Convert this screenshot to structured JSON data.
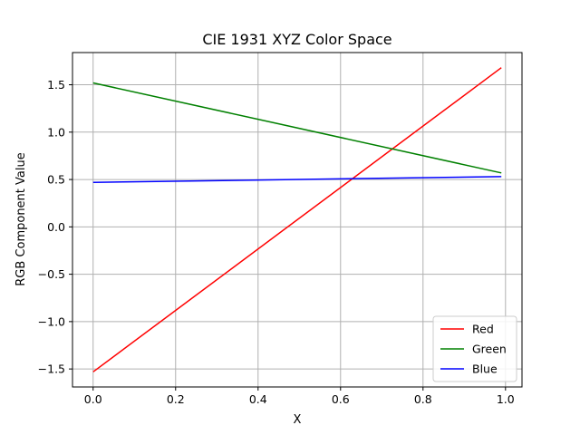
{
  "chart_data": {
    "type": "line",
    "title": "CIE 1931 XYZ Color Space",
    "xlabel": "X",
    "ylabel": "RGB Component Value",
    "xlim": [
      -0.05,
      1.04
    ],
    "ylim": [
      -1.69,
      1.84
    ],
    "xticks": [
      0.0,
      0.2,
      0.4,
      0.6,
      0.8,
      1.0
    ],
    "xtick_labels": [
      "0.0",
      "0.2",
      "0.4",
      "0.6",
      "0.8",
      "1.0"
    ],
    "yticks": [
      -1.5,
      -1.0,
      -0.5,
      0.0,
      0.5,
      1.0,
      1.5
    ],
    "ytick_labels": [
      "−1.5",
      "−1.0",
      "−0.5",
      "0.0",
      "0.5",
      "1.0",
      "1.5"
    ],
    "grid": true,
    "legend_position": "lower-right",
    "series": [
      {
        "name": "Red",
        "color": "#ff0000",
        "x": [
          0.0,
          0.99
        ],
        "y": [
          -1.53,
          1.68
        ]
      },
      {
        "name": "Green",
        "color": "#008000",
        "x": [
          0.0,
          0.99
        ],
        "y": [
          1.52,
          0.57
        ]
      },
      {
        "name": "Blue",
        "color": "#0000ff",
        "x": [
          0.0,
          0.99
        ],
        "y": [
          0.47,
          0.53
        ]
      }
    ]
  }
}
